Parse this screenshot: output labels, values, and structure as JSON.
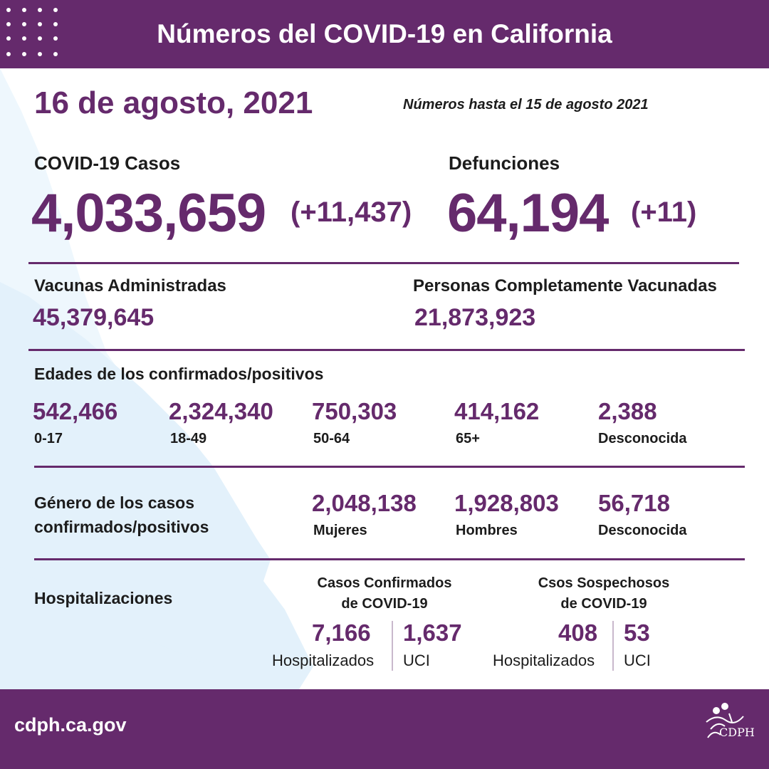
{
  "header": {
    "title": "Números del COVID-19 en California"
  },
  "date": "16 de agosto, 2021",
  "as_of": "Números hasta el 15 de agosto 2021",
  "cases": {
    "label": "COVID-19 Casos",
    "value": "4,033,659",
    "delta": "(+11,437)"
  },
  "deaths": {
    "label": "Defunciones",
    "value": "64,194",
    "delta": "(+11)"
  },
  "vaccines": {
    "label": "Vacunas Administradas",
    "value": "45,379,645"
  },
  "fully_vaccinated": {
    "label": "Personas Completamente Vacunadas",
    "value": "21,873,923"
  },
  "ages": {
    "label": "Edades de los confirmados/positivos",
    "groups": [
      {
        "value": "542,466",
        "label": "0-17"
      },
      {
        "value": "2,324,340",
        "label": "18-49"
      },
      {
        "value": "750,303",
        "label": "50-64"
      },
      {
        "value": "414,162",
        "label": "65+"
      },
      {
        "value": "2,388",
        "label": "Desconocida"
      }
    ]
  },
  "gender": {
    "label_line1": "Género de los casos",
    "label_line2": "confirmados/positivos",
    "groups": [
      {
        "value": "2,048,138",
        "label": "Mujeres"
      },
      {
        "value": "1,928,803",
        "label": "Hombres"
      },
      {
        "value": "56,718",
        "label": "Desconocida"
      }
    ]
  },
  "hospital": {
    "label": "Hospitalizaciones",
    "confirmed": {
      "title_line1": "Casos Confirmados",
      "title_line2": "de COVID-19",
      "hospitalized": {
        "value": "7,166",
        "label": "Hospitalizados"
      },
      "icu": {
        "value": "1,637",
        "label": "UCI"
      }
    },
    "suspected": {
      "title_line1": "Csos Sospechosos",
      "title_line2": "de COVID-19",
      "hospitalized": {
        "value": "408",
        "label": "Hospitalizados"
      },
      "icu": {
        "value": "53",
        "label": "UCI"
      }
    }
  },
  "footer": {
    "url": "cdph.ca.gov",
    "logo_text": "CDPH"
  },
  "colors": {
    "brand": "#652a6c",
    "map": "#e3f1fb"
  }
}
